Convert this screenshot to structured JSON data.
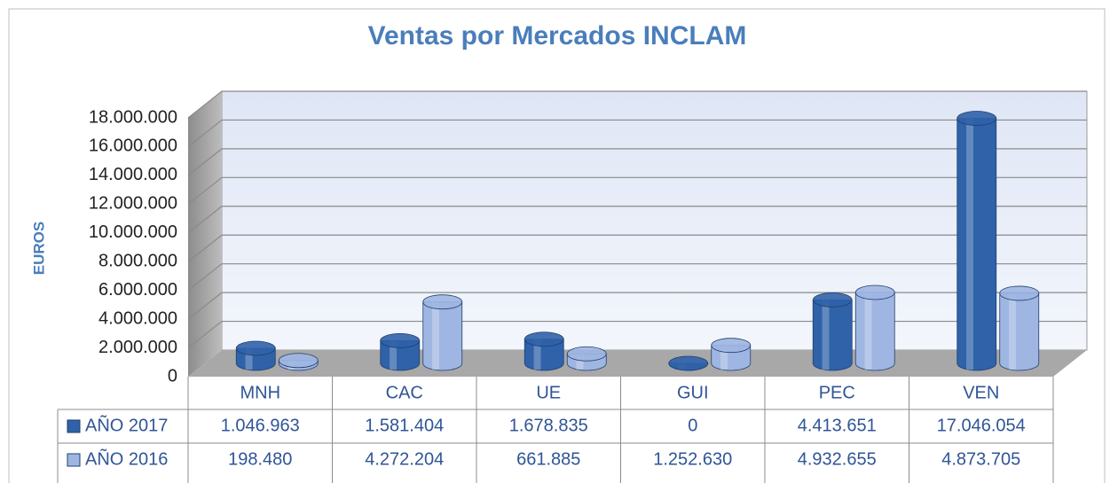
{
  "chart_data": {
    "type": "bar",
    "title": "Ventas por Mercados INCLAM",
    "y_label": "EUROS",
    "categories": [
      "MNH",
      "CAC",
      "UE",
      "GUI",
      "PEC",
      "VEN"
    ],
    "series": [
      {
        "name": "AÑO 2017",
        "color": "#2f62a8",
        "values": [
          1046963,
          1581404,
          1678835,
          0,
          4413651,
          17046054
        ],
        "value_labels": [
          "1.046.963",
          "1.581.404",
          "1.678.835",
          "0",
          "4.413.651",
          "17.046.054"
        ]
      },
      {
        "name": "AÑO 2016",
        "color": "#9fb6e2",
        "values": [
          198480,
          4272204,
          661885,
          1252630,
          4932655,
          4873705
        ],
        "value_labels": [
          "198.480",
          "4.272.204",
          "661.885",
          "1.252.630",
          "4.932.655",
          "4.873.705"
        ]
      }
    ],
    "ylim": [
      0,
      18000000
    ],
    "yticks": [
      0,
      {
        "value": 2000000,
        "label": "2.000.000"
      },
      {
        "value": 4000000,
        "label": "4.000.000"
      },
      {
        "value": 6000000,
        "label": "6.000.000"
      },
      {
        "value": 8000000,
        "label": "8.000.000"
      },
      {
        "value": 10000000,
        "label": "10.000.000"
      },
      {
        "value": 12000000,
        "label": "12.000.000"
      },
      {
        "value": 14000000,
        "label": "14.000.000"
      },
      {
        "value": 16000000,
        "label": "16.000.000"
      },
      {
        "value": 18000000,
        "label": "18.000.000"
      }
    ],
    "grid": true
  }
}
